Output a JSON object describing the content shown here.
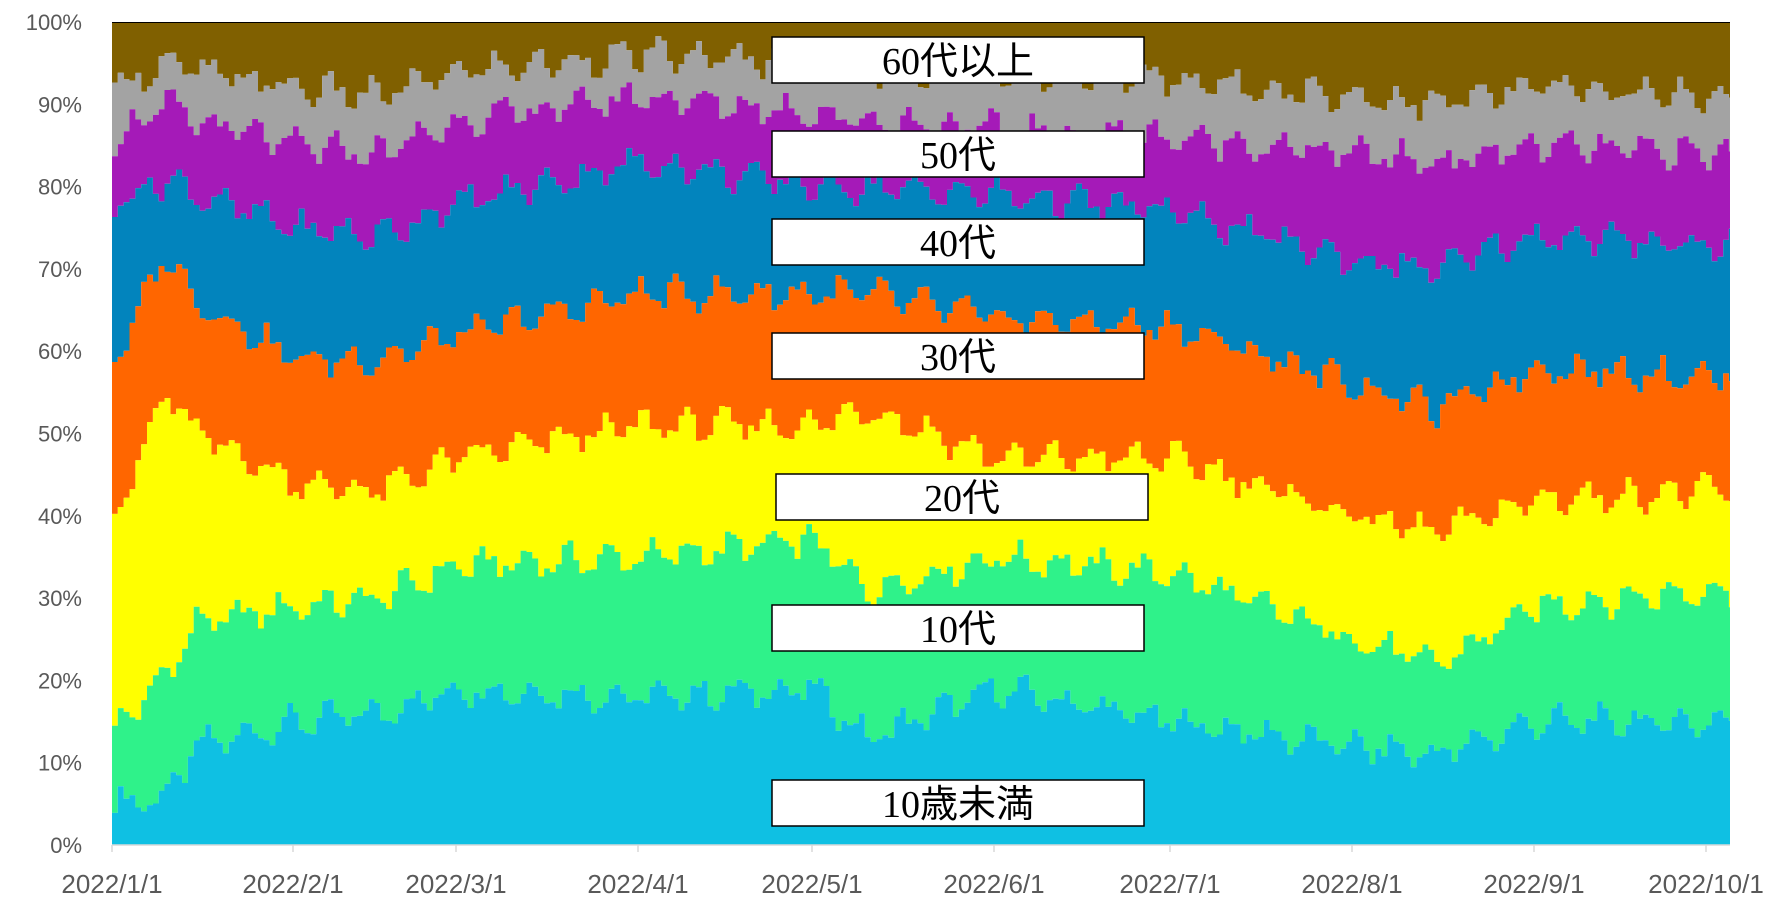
{
  "chart_data": {
    "type": "area",
    "stacked": "percent",
    "x_tick_labels": [
      "2022/1/1",
      "2022/2/1",
      "2022/3/1",
      "2022/4/1",
      "2022/5/1",
      "2022/6/1",
      "2022/7/1",
      "2022/8/1",
      "2022/9/1",
      "2022/10/1"
    ],
    "y_tick_labels": [
      "0%",
      "10%",
      "20%",
      "30%",
      "40%",
      "50%",
      "60%",
      "70%",
      "80%",
      "90%",
      "100%"
    ],
    "ylim": [
      0,
      100
    ],
    "x_keys": [
      "1/1",
      "1/10",
      "1/15",
      "2/1",
      "2/15",
      "3/1",
      "4/1",
      "5/1",
      "5/10",
      "6/1",
      "7/1",
      "8/1",
      "8/15",
      "9/1",
      "10/1"
    ],
    "cumulative_boundaries": [
      {
        "name": "10歳未満",
        "upper": [
          5,
          6,
          12,
          15,
          16,
          19,
          18,
          19,
          13,
          19,
          15,
          12,
          11,
          15,
          15
        ]
      },
      {
        "name": "10代",
        "upper": [
          14,
          21,
          27,
          29,
          30,
          34,
          35,
          37,
          31,
          35,
          33,
          25,
          22,
          29,
          31
        ]
      },
      {
        "name": "20代",
        "upper": [
          40,
          55,
          50,
          44,
          43,
          47,
          51,
          51,
          53,
          47,
          47,
          40,
          38,
          42,
          43
        ]
      },
      {
        "name": "30代",
        "upper": [
          59,
          72,
          66,
          59,
          59,
          62,
          67,
          67,
          67,
          64,
          63,
          56,
          53,
          58,
          57
        ]
      },
      {
        "name": "40代",
        "upper": [
          78,
          81,
          79,
          75,
          74,
          78,
          83,
          80,
          80,
          79,
          77,
          71,
          70,
          74,
          73
        ]
      },
      {
        "name": "50代",
        "upper": [
          86,
          90,
          88,
          85,
          84,
          88,
          91,
          89,
          88,
          87,
          86,
          84,
          83,
          85,
          84
        ]
      },
      {
        "name": "60代以上",
        "upper": [
          92,
          95,
          94,
          92,
          91,
          94,
          96,
          95,
          94,
          94,
          93,
          91,
          90,
          92,
          91
        ]
      },
      {
        "name": "",
        "upper": [
          100,
          100,
          100,
          100,
          100,
          100,
          100,
          100,
          100,
          100,
          100,
          100,
          100,
          100,
          100
        ]
      }
    ],
    "colors": [
      "#0fc0e3",
      "#2ff28a",
      "#ffff00",
      "#ff6600",
      "#0284bd",
      "#a51ab8",
      "#a3a3a3",
      "#806000",
      "#000000"
    ],
    "band_labels": [
      "60代以上",
      "50代",
      "40代",
      "30代",
      "20代",
      "10代",
      "10歳未満"
    ],
    "grid": false
  }
}
